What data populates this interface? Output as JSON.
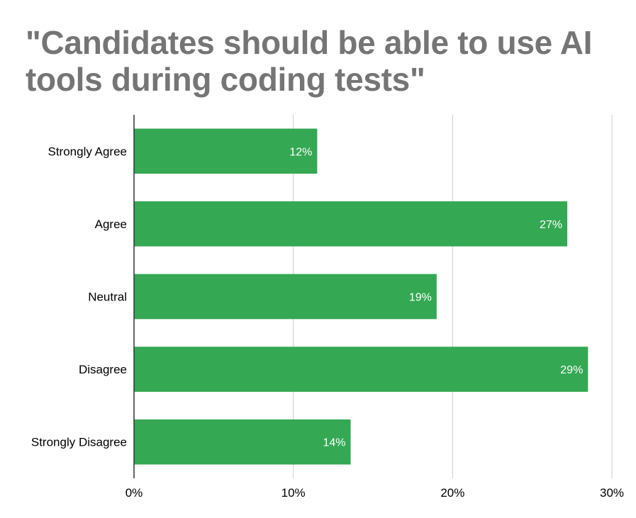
{
  "chart_data": {
    "type": "bar",
    "orientation": "horizontal",
    "title": "\"Candidates should be able to use AI tools during coding tests\"",
    "categories": [
      "Strongly Agree",
      "Agree",
      "Neutral",
      "Disagree",
      "Strongly Disagree"
    ],
    "values": [
      11.5,
      27.2,
      19.0,
      28.5,
      13.6
    ],
    "data_labels": [
      "12%",
      "27%",
      "19%",
      "29%",
      "14%"
    ],
    "xlim": [
      0,
      30
    ],
    "x_ticks": [
      0,
      10,
      20,
      30
    ],
    "x_tick_labels": [
      "0%",
      "10%",
      "20%",
      "30%"
    ],
    "grid": true,
    "legend": "none",
    "bar_color": "#34a853",
    "title_color": "#757575",
    "grid_color": "#cccccc"
  }
}
